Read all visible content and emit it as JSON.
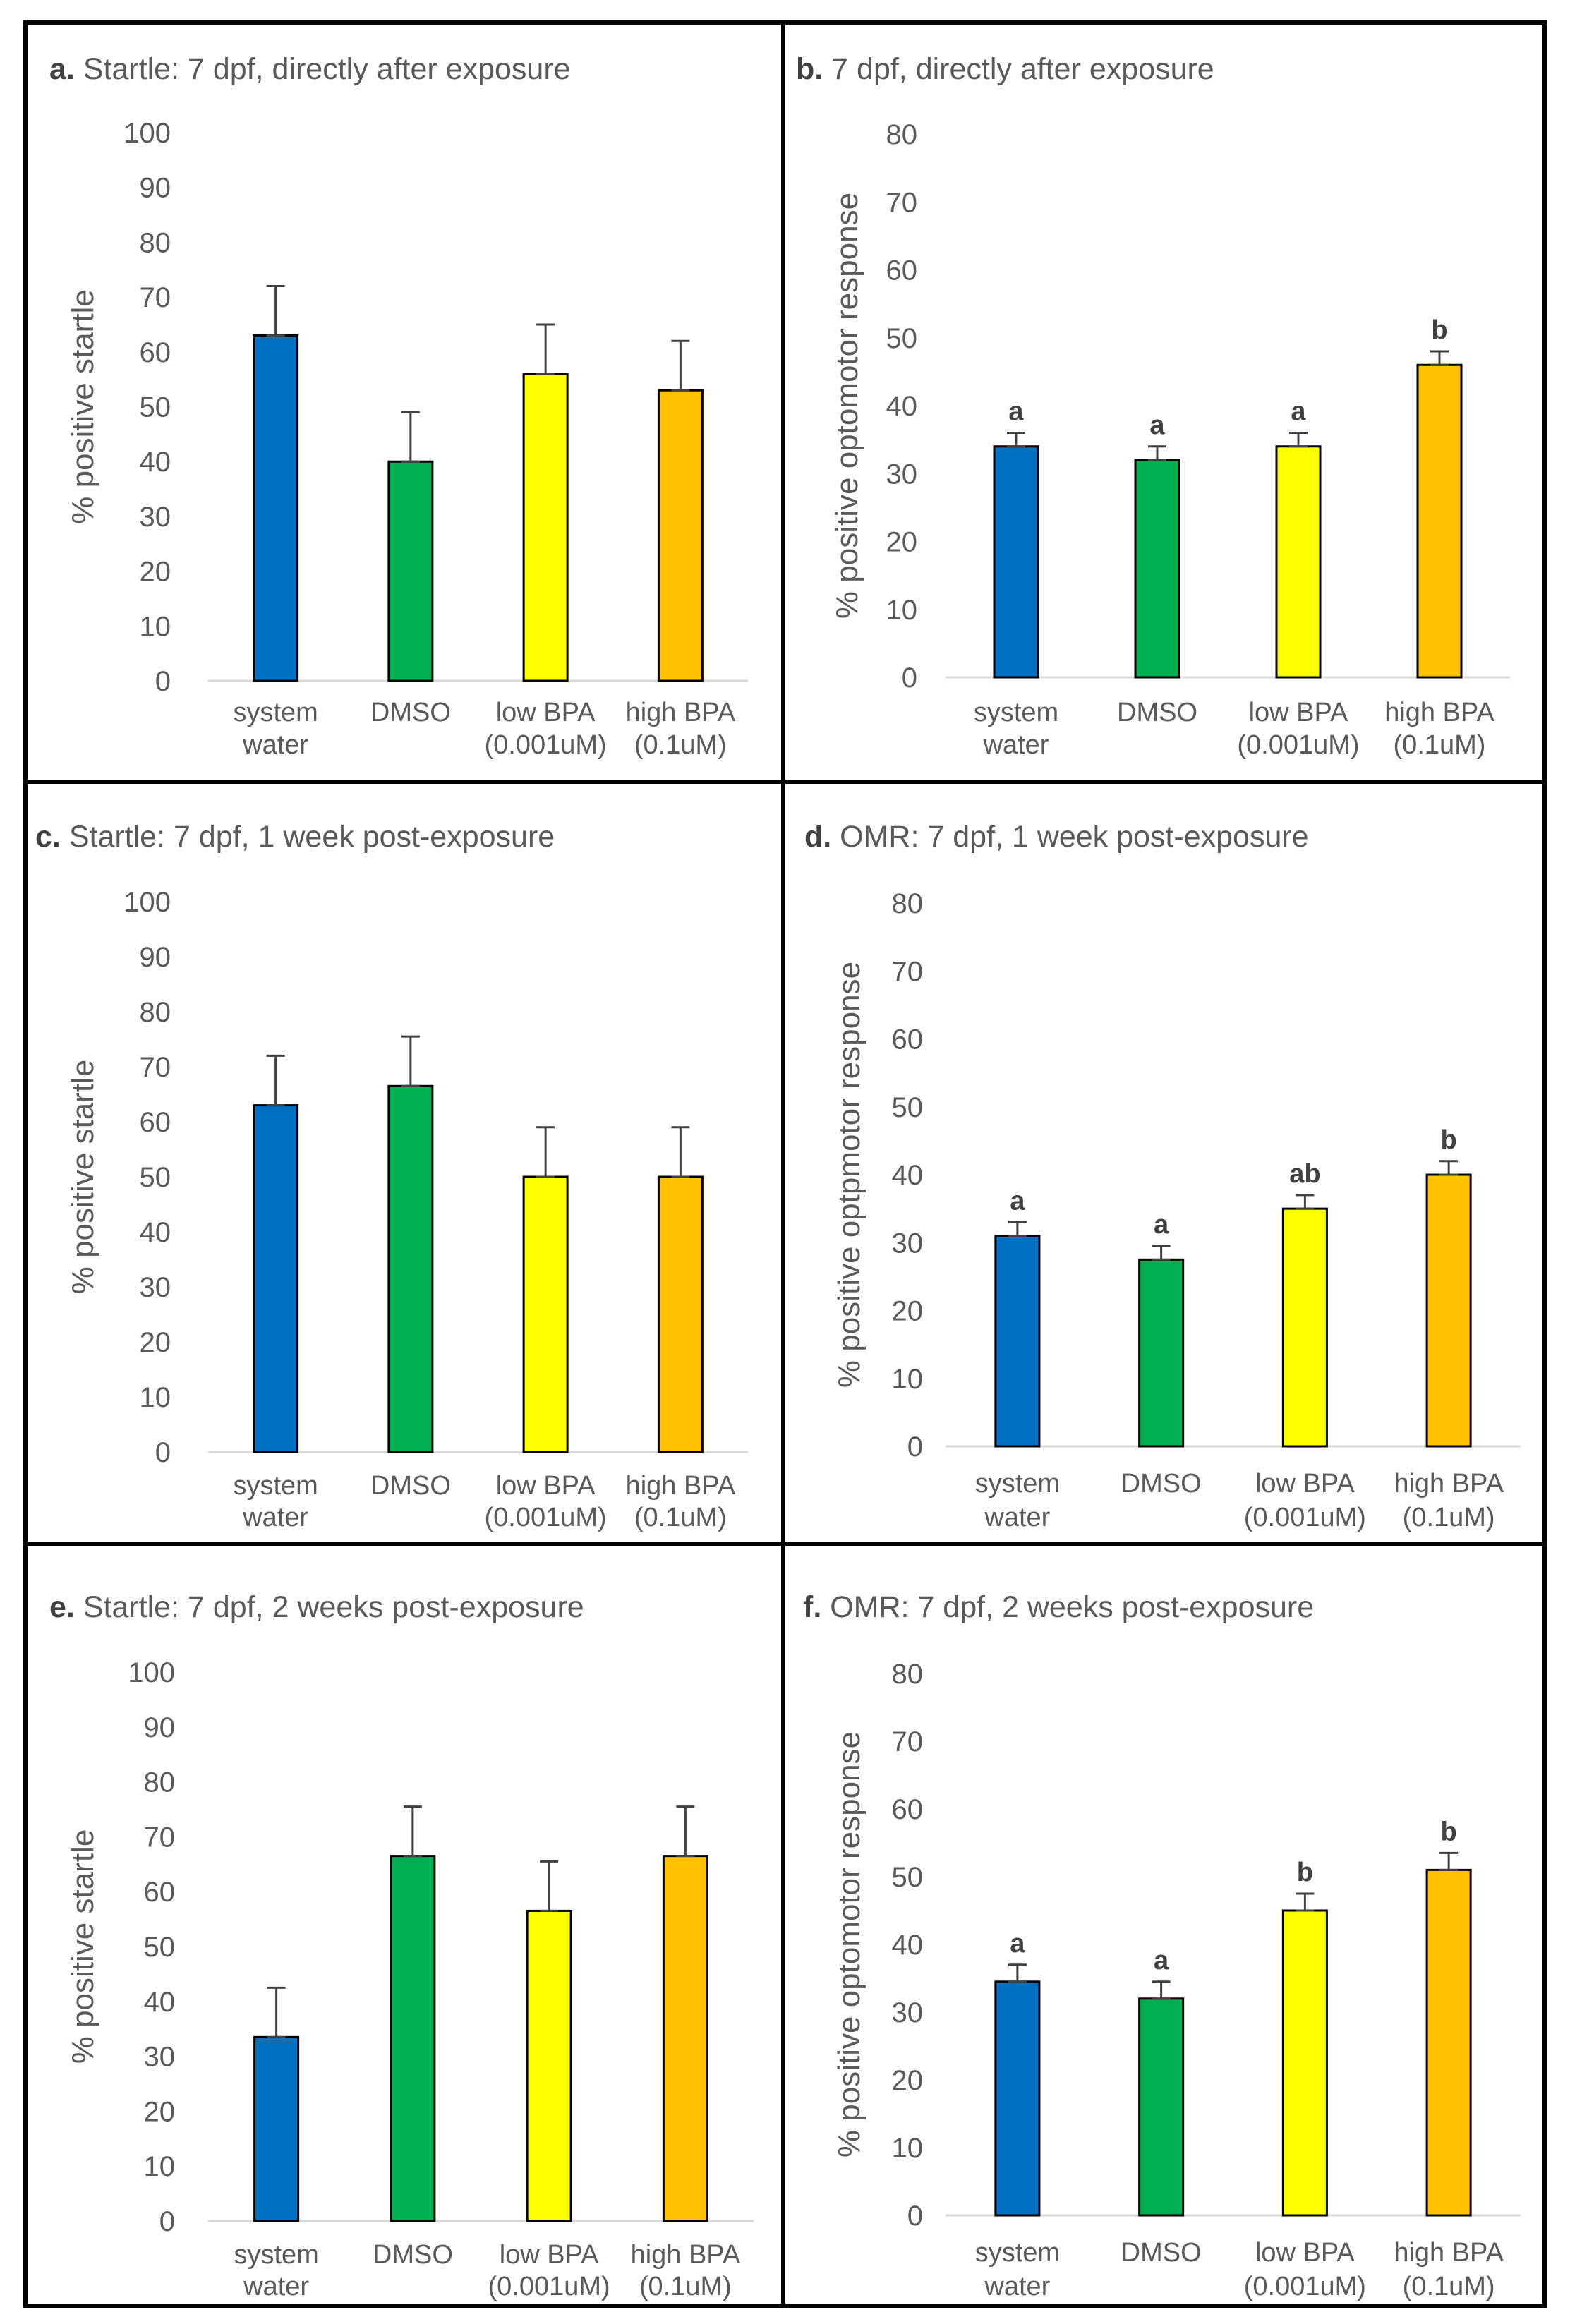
{
  "chart_data": [
    {
      "id": "a",
      "type": "bar",
      "letter": "a.",
      "title": "Startle: 7 dpf, directly after exposure",
      "ylabel": "% positive startle",
      "ylim": [
        0,
        100
      ],
      "yticks": [
        0,
        10,
        20,
        30,
        40,
        50,
        60,
        70,
        80,
        90,
        100
      ],
      "categories": [
        [
          "system",
          "water"
        ],
        [
          "DMSO"
        ],
        [
          "low BPA",
          "(0.001uM)"
        ],
        [
          "high BPA",
          "(0.1uM)"
        ]
      ],
      "values": [
        63,
        40,
        56,
        53
      ],
      "errors": [
        9,
        9,
        9,
        9
      ],
      "significance": [],
      "colors": [
        "#0070C0",
        "#00B050",
        "#FFFF00",
        "#FFC000"
      ]
    },
    {
      "id": "b",
      "type": "bar",
      "letter": "b.",
      "title": "7 dpf, directly after exposure",
      "ylabel": "% positive optomotor response",
      "ylim": [
        0,
        80
      ],
      "yticks": [
        0,
        10,
        20,
        30,
        40,
        50,
        60,
        70,
        80
      ],
      "categories": [
        [
          "system",
          "water"
        ],
        [
          "DMSO"
        ],
        [
          "low BPA",
          "(0.001uM)"
        ],
        [
          "high BPA",
          "(0.1uM)"
        ]
      ],
      "values": [
        34,
        32,
        34,
        46
      ],
      "errors": [
        2,
        2,
        2,
        2
      ],
      "significance": [
        "a",
        "a",
        "a",
        "b"
      ],
      "colors": [
        "#0070C0",
        "#00B050",
        "#FFFF00",
        "#FFC000"
      ]
    },
    {
      "id": "c",
      "type": "bar",
      "letter": "c.",
      "title": "Startle: 7 dpf, 1 week post-exposure",
      "ylabel": "% positive startle",
      "ylim": [
        0,
        100
      ],
      "yticks": [
        0,
        10,
        20,
        30,
        40,
        50,
        60,
        70,
        80,
        90,
        100
      ],
      "categories": [
        [
          "system",
          "water"
        ],
        [
          "DMSO"
        ],
        [
          "low BPA",
          "(0.001uM)"
        ],
        [
          "high BPA",
          "(0.1uM)"
        ]
      ],
      "values": [
        63,
        66.5,
        50,
        50
      ],
      "errors": [
        9,
        9,
        9,
        9
      ],
      "significance": [],
      "colors": [
        "#0070C0",
        "#00B050",
        "#FFFF00",
        "#FFC000"
      ]
    },
    {
      "id": "d",
      "type": "bar",
      "letter": "d.",
      "title": "OMR: 7 dpf, 1 week post-exposure",
      "ylabel": "% positive optpmotor response",
      "ylim": [
        0,
        80
      ],
      "yticks": [
        0,
        10,
        20,
        30,
        40,
        50,
        60,
        70,
        80
      ],
      "categories": [
        [
          "system",
          "water"
        ],
        [
          "DMSO"
        ],
        [
          "low BPA",
          "(0.001uM)"
        ],
        [
          "high BPA",
          "(0.1uM)"
        ]
      ],
      "values": [
        31,
        27.5,
        35,
        40
      ],
      "errors": [
        2,
        2,
        2,
        2
      ],
      "significance": [
        "a",
        "a",
        "ab",
        "b"
      ],
      "colors": [
        "#0070C0",
        "#00B050",
        "#FFFF00",
        "#FFC000"
      ]
    },
    {
      "id": "e",
      "type": "bar",
      "letter": "e.",
      "title": "Startle: 7 dpf, 2 weeks post-exposure",
      "ylabel": "% positive startle",
      "ylim": [
        0,
        100
      ],
      "yticks": [
        0,
        10,
        20,
        30,
        40,
        50,
        60,
        70,
        80,
        90,
        100
      ],
      "categories": [
        [
          "system",
          "water"
        ],
        [
          "DMSO"
        ],
        [
          "low BPA",
          "(0.001uM)"
        ],
        [
          "high BPA",
          "(0.1uM)"
        ]
      ],
      "values": [
        33.5,
        66.5,
        56.5,
        66.5
      ],
      "errors": [
        9,
        9,
        9,
        9
      ],
      "significance": [],
      "colors": [
        "#0070C0",
        "#00B050",
        "#FFFF00",
        "#FFC000"
      ]
    },
    {
      "id": "f",
      "type": "bar",
      "letter": "f.",
      "title": "OMR: 7 dpf, 2 weeks post-exposure",
      "ylabel": "% positive optomotor response",
      "ylim": [
        0,
        80
      ],
      "yticks": [
        0,
        10,
        20,
        30,
        40,
        50,
        60,
        70,
        80
      ],
      "categories": [
        [
          "system",
          "water"
        ],
        [
          "DMSO"
        ],
        [
          "low BPA",
          "(0.001uM)"
        ],
        [
          "high BPA",
          "(0.1uM)"
        ]
      ],
      "values": [
        34.5,
        32,
        45,
        51
      ],
      "errors": [
        2.5,
        2.5,
        2.5,
        2.5
      ],
      "significance": [
        "a",
        "a",
        "b",
        "b"
      ],
      "colors": [
        "#0070C0",
        "#00B050",
        "#FFFF00",
        "#FFC000"
      ]
    }
  ]
}
